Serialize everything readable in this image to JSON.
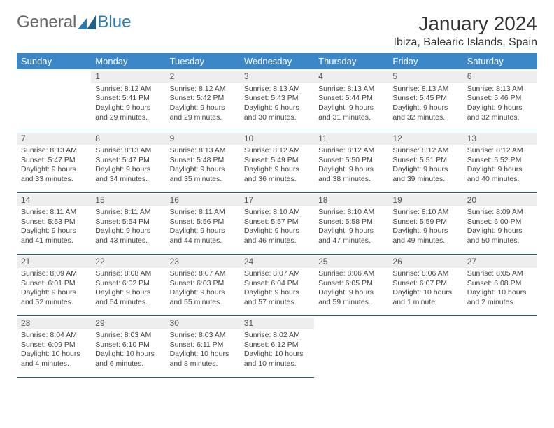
{
  "logo": {
    "text_general": "General",
    "text_blue": "Blue"
  },
  "header": {
    "month_title": "January 2024",
    "location": "Ibiza, Balearic Islands, Spain"
  },
  "weekdays": [
    "Sunday",
    "Monday",
    "Tuesday",
    "Wednesday",
    "Thursday",
    "Friday",
    "Saturday"
  ],
  "colors": {
    "header_bg": "#3b87c8",
    "header_text": "#ffffff",
    "cell_border": "#2a5a88",
    "daynum_bg": "#eeeeee",
    "text": "#444444",
    "logo_general": "#666666",
    "logo_blue": "#2a7ab0",
    "title": "#333333"
  },
  "typography": {
    "body_fontsize": 10.5,
    "daynum_fontsize": 12,
    "weekday_fontsize": 13,
    "title_fontsize": 28,
    "location_fontsize": 16
  },
  "days": [
    {
      "n": "1",
      "sunrise": "Sunrise: 8:12 AM",
      "sunset": "Sunset: 5:41 PM",
      "daylight": "Daylight: 9 hours and 29 minutes."
    },
    {
      "n": "2",
      "sunrise": "Sunrise: 8:12 AM",
      "sunset": "Sunset: 5:42 PM",
      "daylight": "Daylight: 9 hours and 29 minutes."
    },
    {
      "n": "3",
      "sunrise": "Sunrise: 8:13 AM",
      "sunset": "Sunset: 5:43 PM",
      "daylight": "Daylight: 9 hours and 30 minutes."
    },
    {
      "n": "4",
      "sunrise": "Sunrise: 8:13 AM",
      "sunset": "Sunset: 5:44 PM",
      "daylight": "Daylight: 9 hours and 31 minutes."
    },
    {
      "n": "5",
      "sunrise": "Sunrise: 8:13 AM",
      "sunset": "Sunset: 5:45 PM",
      "daylight": "Daylight: 9 hours and 32 minutes."
    },
    {
      "n": "6",
      "sunrise": "Sunrise: 8:13 AM",
      "sunset": "Sunset: 5:46 PM",
      "daylight": "Daylight: 9 hours and 32 minutes."
    },
    {
      "n": "7",
      "sunrise": "Sunrise: 8:13 AM",
      "sunset": "Sunset: 5:47 PM",
      "daylight": "Daylight: 9 hours and 33 minutes."
    },
    {
      "n": "8",
      "sunrise": "Sunrise: 8:13 AM",
      "sunset": "Sunset: 5:47 PM",
      "daylight": "Daylight: 9 hours and 34 minutes."
    },
    {
      "n": "9",
      "sunrise": "Sunrise: 8:13 AM",
      "sunset": "Sunset: 5:48 PM",
      "daylight": "Daylight: 9 hours and 35 minutes."
    },
    {
      "n": "10",
      "sunrise": "Sunrise: 8:12 AM",
      "sunset": "Sunset: 5:49 PM",
      "daylight": "Daylight: 9 hours and 36 minutes."
    },
    {
      "n": "11",
      "sunrise": "Sunrise: 8:12 AM",
      "sunset": "Sunset: 5:50 PM",
      "daylight": "Daylight: 9 hours and 38 minutes."
    },
    {
      "n": "12",
      "sunrise": "Sunrise: 8:12 AM",
      "sunset": "Sunset: 5:51 PM",
      "daylight": "Daylight: 9 hours and 39 minutes."
    },
    {
      "n": "13",
      "sunrise": "Sunrise: 8:12 AM",
      "sunset": "Sunset: 5:52 PM",
      "daylight": "Daylight: 9 hours and 40 minutes."
    },
    {
      "n": "14",
      "sunrise": "Sunrise: 8:11 AM",
      "sunset": "Sunset: 5:53 PM",
      "daylight": "Daylight: 9 hours and 41 minutes."
    },
    {
      "n": "15",
      "sunrise": "Sunrise: 8:11 AM",
      "sunset": "Sunset: 5:54 PM",
      "daylight": "Daylight: 9 hours and 43 minutes."
    },
    {
      "n": "16",
      "sunrise": "Sunrise: 8:11 AM",
      "sunset": "Sunset: 5:56 PM",
      "daylight": "Daylight: 9 hours and 44 minutes."
    },
    {
      "n": "17",
      "sunrise": "Sunrise: 8:10 AM",
      "sunset": "Sunset: 5:57 PM",
      "daylight": "Daylight: 9 hours and 46 minutes."
    },
    {
      "n": "18",
      "sunrise": "Sunrise: 8:10 AM",
      "sunset": "Sunset: 5:58 PM",
      "daylight": "Daylight: 9 hours and 47 minutes."
    },
    {
      "n": "19",
      "sunrise": "Sunrise: 8:10 AM",
      "sunset": "Sunset: 5:59 PM",
      "daylight": "Daylight: 9 hours and 49 minutes."
    },
    {
      "n": "20",
      "sunrise": "Sunrise: 8:09 AM",
      "sunset": "Sunset: 6:00 PM",
      "daylight": "Daylight: 9 hours and 50 minutes."
    },
    {
      "n": "21",
      "sunrise": "Sunrise: 8:09 AM",
      "sunset": "Sunset: 6:01 PM",
      "daylight": "Daylight: 9 hours and 52 minutes."
    },
    {
      "n": "22",
      "sunrise": "Sunrise: 8:08 AM",
      "sunset": "Sunset: 6:02 PM",
      "daylight": "Daylight: 9 hours and 54 minutes."
    },
    {
      "n": "23",
      "sunrise": "Sunrise: 8:07 AM",
      "sunset": "Sunset: 6:03 PM",
      "daylight": "Daylight: 9 hours and 55 minutes."
    },
    {
      "n": "24",
      "sunrise": "Sunrise: 8:07 AM",
      "sunset": "Sunset: 6:04 PM",
      "daylight": "Daylight: 9 hours and 57 minutes."
    },
    {
      "n": "25",
      "sunrise": "Sunrise: 8:06 AM",
      "sunset": "Sunset: 6:05 PM",
      "daylight": "Daylight: 9 hours and 59 minutes."
    },
    {
      "n": "26",
      "sunrise": "Sunrise: 8:06 AM",
      "sunset": "Sunset: 6:07 PM",
      "daylight": "Daylight: 10 hours and 1 minute."
    },
    {
      "n": "27",
      "sunrise": "Sunrise: 8:05 AM",
      "sunset": "Sunset: 6:08 PM",
      "daylight": "Daylight: 10 hours and 2 minutes."
    },
    {
      "n": "28",
      "sunrise": "Sunrise: 8:04 AM",
      "sunset": "Sunset: 6:09 PM",
      "daylight": "Daylight: 10 hours and 4 minutes."
    },
    {
      "n": "29",
      "sunrise": "Sunrise: 8:03 AM",
      "sunset": "Sunset: 6:10 PM",
      "daylight": "Daylight: 10 hours and 6 minutes."
    },
    {
      "n": "30",
      "sunrise": "Sunrise: 8:03 AM",
      "sunset": "Sunset: 6:11 PM",
      "daylight": "Daylight: 10 hours and 8 minutes."
    },
    {
      "n": "31",
      "sunrise": "Sunrise: 8:02 AM",
      "sunset": "Sunset: 6:12 PM",
      "daylight": "Daylight: 10 hours and 10 minutes."
    }
  ],
  "layout": {
    "first_weekday_offset": 1,
    "rows": 5,
    "cols": 7
  }
}
